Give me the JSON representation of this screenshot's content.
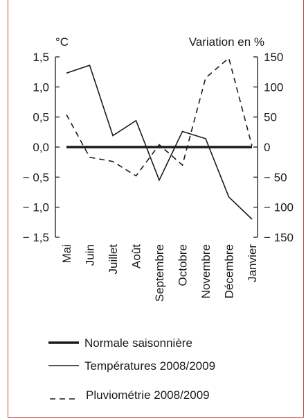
{
  "chart_data": {
    "type": "line",
    "title": "",
    "left_axis_unit": "°C",
    "right_axis_unit": "Variation en %",
    "categories": [
      "Mai",
      "Juin",
      "Juillet",
      "Août",
      "Septembre",
      "Octobre",
      "Novembre",
      "Décembre",
      "Janvier"
    ],
    "left_axis": {
      "ylim": [
        -1.5,
        1.5
      ],
      "ticks": [
        1.5,
        1.0,
        0.5,
        0.0,
        -0.5,
        -1.0,
        -1.5
      ],
      "tick_labels": [
        "1,5",
        "1,0",
        "0,5",
        "0,0",
        "− 0,5",
        "− 1,0",
        "− 1,5"
      ]
    },
    "right_axis": {
      "ylim": [
        -150,
        150
      ],
      "ticks": [
        150,
        100,
        50,
        0,
        -50,
        -100,
        -150
      ],
      "tick_labels": [
        "150",
        "100",
        "50",
        "0",
        "− 50",
        "− 100",
        "− 150"
      ]
    },
    "series": [
      {
        "name": "Normale saisonnière",
        "axis": "left",
        "style": "thick",
        "values": [
          0,
          0,
          0,
          0,
          0,
          0,
          0,
          0,
          0
        ]
      },
      {
        "name": "Températures 2008/2009",
        "axis": "left",
        "style": "solid",
        "values": [
          1.23,
          1.36,
          0.19,
          0.44,
          -0.55,
          0.26,
          0.14,
          -0.83,
          -1.2
        ]
      },
      {
        "name": "Pluviométrie 2008/2009",
        "axis": "right",
        "style": "dashed",
        "values": [
          54,
          -17,
          -24,
          -48,
          4,
          -30,
          115,
          148,
          2
        ]
      }
    ],
    "legend": [
      "Normale saisonnière",
      "Températures 2008/2009",
      "Pluviométrie 2008/2009"
    ],
    "grid": false,
    "colors": {
      "lines": "#1a1a1a",
      "frame": "#c8463a"
    }
  }
}
